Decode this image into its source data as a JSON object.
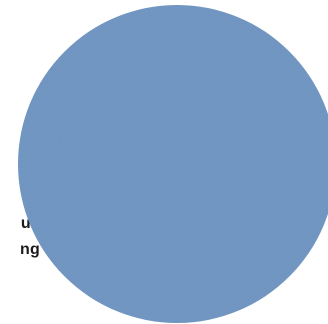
{
  "swatch": {
    "shape": "circle",
    "color": "#7399c5",
    "texture": "fine grain"
  },
  "label": {
    "line1": "ue",
    "line2": "ng"
  }
}
